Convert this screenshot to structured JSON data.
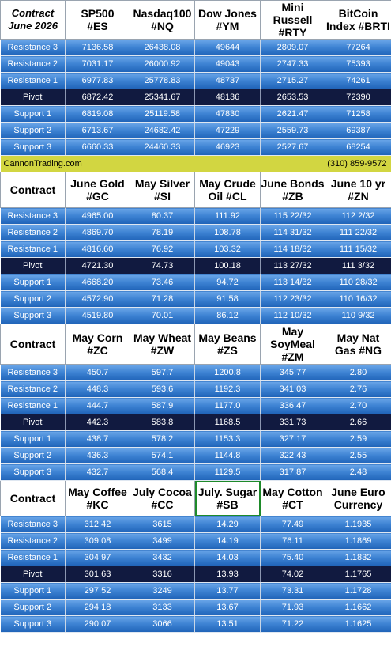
{
  "contract_month": "Contract\nJune 2026",
  "row_labels": [
    "Resistance 3",
    "Resistance 2",
    "Resistance 1",
    "Pivot",
    "Support 1",
    "Support 2",
    "Support 3"
  ],
  "contract_label": "Contract",
  "band": {
    "site": "CannonTrading.com",
    "phone": "(310) 859-9572"
  },
  "sections": [
    {
      "headers": [
        "SP500\n#ES",
        "Nasdaq100\n#NQ",
        "Dow Jones\n#YM",
        "Mini Russell\n#RTY",
        "BitCoin\nIndex #BRTI"
      ],
      "rows": [
        [
          "7136.58",
          "26438.08",
          "49644",
          "2809.07",
          "77264"
        ],
        [
          "7031.17",
          "26000.92",
          "49043",
          "2747.33",
          "75393"
        ],
        [
          "6977.83",
          "25778.83",
          "48737",
          "2715.27",
          "74261"
        ],
        [
          "6872.42",
          "25341.67",
          "48136",
          "2653.53",
          "72390"
        ],
        [
          "6819.08",
          "25119.58",
          "47830",
          "2621.47",
          "71258"
        ],
        [
          "6713.67",
          "24682.42",
          "47229",
          "2559.73",
          "69387"
        ],
        [
          "6660.33",
          "24460.33",
          "46923",
          "2527.67",
          "68254"
        ]
      ]
    },
    {
      "headers": [
        "June Gold\n#GC",
        "May Silver\n#SI",
        "May Crude\nOil #CL",
        "June Bonds\n#ZB",
        "June 10 yr\n#ZN"
      ],
      "rows": [
        [
          "4965.00",
          "80.37",
          "111.92",
          "115 22/32",
          "112  2/32"
        ],
        [
          "4869.70",
          "78.19",
          "108.78",
          "114 31/32",
          "111 22/32"
        ],
        [
          "4816.60",
          "76.92",
          "103.32",
          "114 18/32",
          "111 15/32"
        ],
        [
          "4721.30",
          "74.73",
          "100.18",
          "113 27/32",
          "111  3/32"
        ],
        [
          "4668.20",
          "73.46",
          "94.72",
          "113 14/32",
          "110 28/32"
        ],
        [
          "4572.90",
          "71.28",
          "91.58",
          "112 23/32",
          "110 16/32"
        ],
        [
          "4519.80",
          "70.01",
          "86.12",
          "112 10/32",
          "110  9/32"
        ]
      ]
    },
    {
      "headers": [
        "May Corn\n#ZC",
        "May  Wheat\n#ZW",
        "May Beans\n#ZS",
        "May\nSoyMeal\n#ZM",
        "May Nat\nGas #NG"
      ],
      "rows": [
        [
          "450.7",
          "597.7",
          "1200.8",
          "345.77",
          "2.80"
        ],
        [
          "448.3",
          "593.6",
          "1192.3",
          "341.03",
          "2.76"
        ],
        [
          "444.7",
          "587.9",
          "1177.0",
          "336.47",
          "2.70"
        ],
        [
          "442.3",
          "583.8",
          "1168.5",
          "331.73",
          "2.66"
        ],
        [
          "438.7",
          "578.2",
          "1153.3",
          "327.17",
          "2.59"
        ],
        [
          "436.3",
          "574.1",
          "1144.8",
          "322.43",
          "2.55"
        ],
        [
          "432.7",
          "568.4",
          "1129.5",
          "317.87",
          "2.48"
        ]
      ]
    },
    {
      "headers": [
        "May Coffee\n#KC",
        "July Cocoa\n#CC",
        "July. Sugar\n#SB",
        "May Cotton\n#CT",
        "June Euro\nCurrency"
      ],
      "rows": [
        [
          "312.42",
          "3615",
          "14.29",
          "77.49",
          "1.1935"
        ],
        [
          "309.08",
          "3499",
          "14.19",
          "76.11",
          "1.1869"
        ],
        [
          "304.97",
          "3432",
          "14.03",
          "75.40",
          "1.1832"
        ],
        [
          "301.63",
          "3316",
          "13.93",
          "74.02",
          "1.1765"
        ],
        [
          "297.52",
          "3249",
          "13.77",
          "73.31",
          "1.1728"
        ],
        [
          "294.18",
          "3133",
          "13.67",
          "71.93",
          "1.1662"
        ],
        [
          "290.07",
          "3066",
          "13.51",
          "71.22",
          "1.1625"
        ]
      ]
    }
  ]
}
